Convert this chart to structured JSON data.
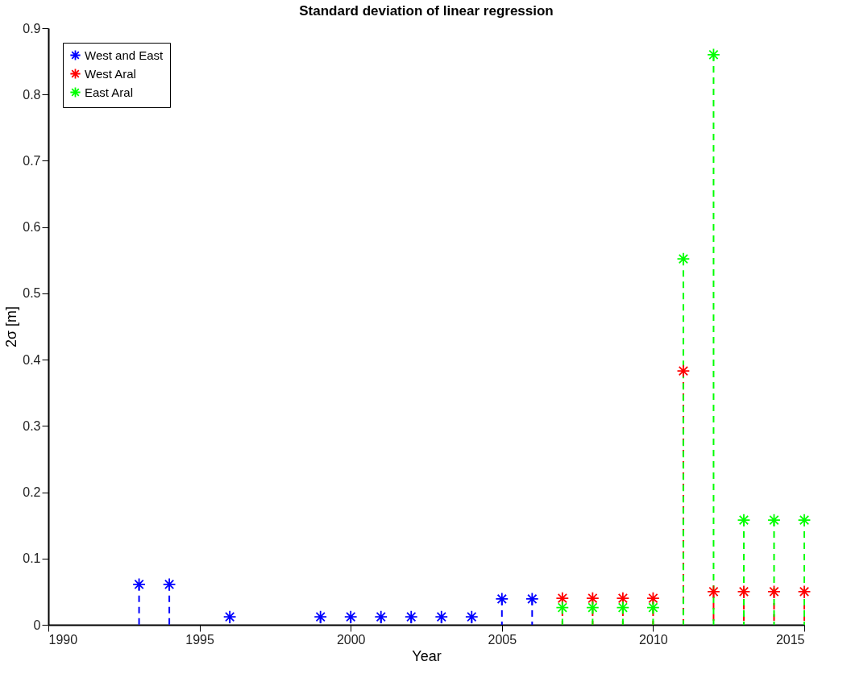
{
  "chart_data": {
    "type": "lollipop",
    "title": "Standard deviation of linear regression",
    "xlabel": "Year",
    "ylabel": "2σ [m]",
    "xlim": [
      1990,
      2015
    ],
    "xticks": [
      1990,
      1995,
      2000,
      2005,
      2010,
      2015
    ],
    "ylim": [
      0,
      0.9
    ],
    "yticks": [
      0,
      0.1,
      0.2,
      0.3,
      0.4,
      0.5,
      0.6,
      0.7,
      0.8,
      0.9
    ],
    "grid": false,
    "legend": "top left",
    "marker": "cross",
    "series": [
      {
        "name": "West and East",
        "color": "#0000ff",
        "line_style": "dashed",
        "x": [
          1993,
          1994,
          1996,
          1999,
          2000,
          2001,
          2002,
          2003,
          2004,
          2005,
          2006
        ],
        "values": [
          0.061,
          0.061,
          0.012,
          0.012,
          0.012,
          0.012,
          0.012,
          0.012,
          0.012,
          0.039,
          0.039
        ]
      },
      {
        "name": "West Aral",
        "color": "#ff0000",
        "line_style": "dashed",
        "x": [
          2007,
          2008,
          2009,
          2010,
          2011,
          2012,
          2013,
          2014,
          2015
        ],
        "values": [
          0.04,
          0.04,
          0.04,
          0.04,
          0.383,
          0.05,
          0.05,
          0.05,
          0.05
        ]
      },
      {
        "name": "East Aral",
        "color": "#00ff00",
        "line_style": "dashed",
        "x": [
          2007,
          2008,
          2009,
          2010,
          2011,
          2012,
          2013,
          2014,
          2015
        ],
        "values": [
          0.026,
          0.026,
          0.026,
          0.026,
          0.552,
          0.86,
          0.158,
          0.158,
          0.158
        ]
      }
    ]
  }
}
